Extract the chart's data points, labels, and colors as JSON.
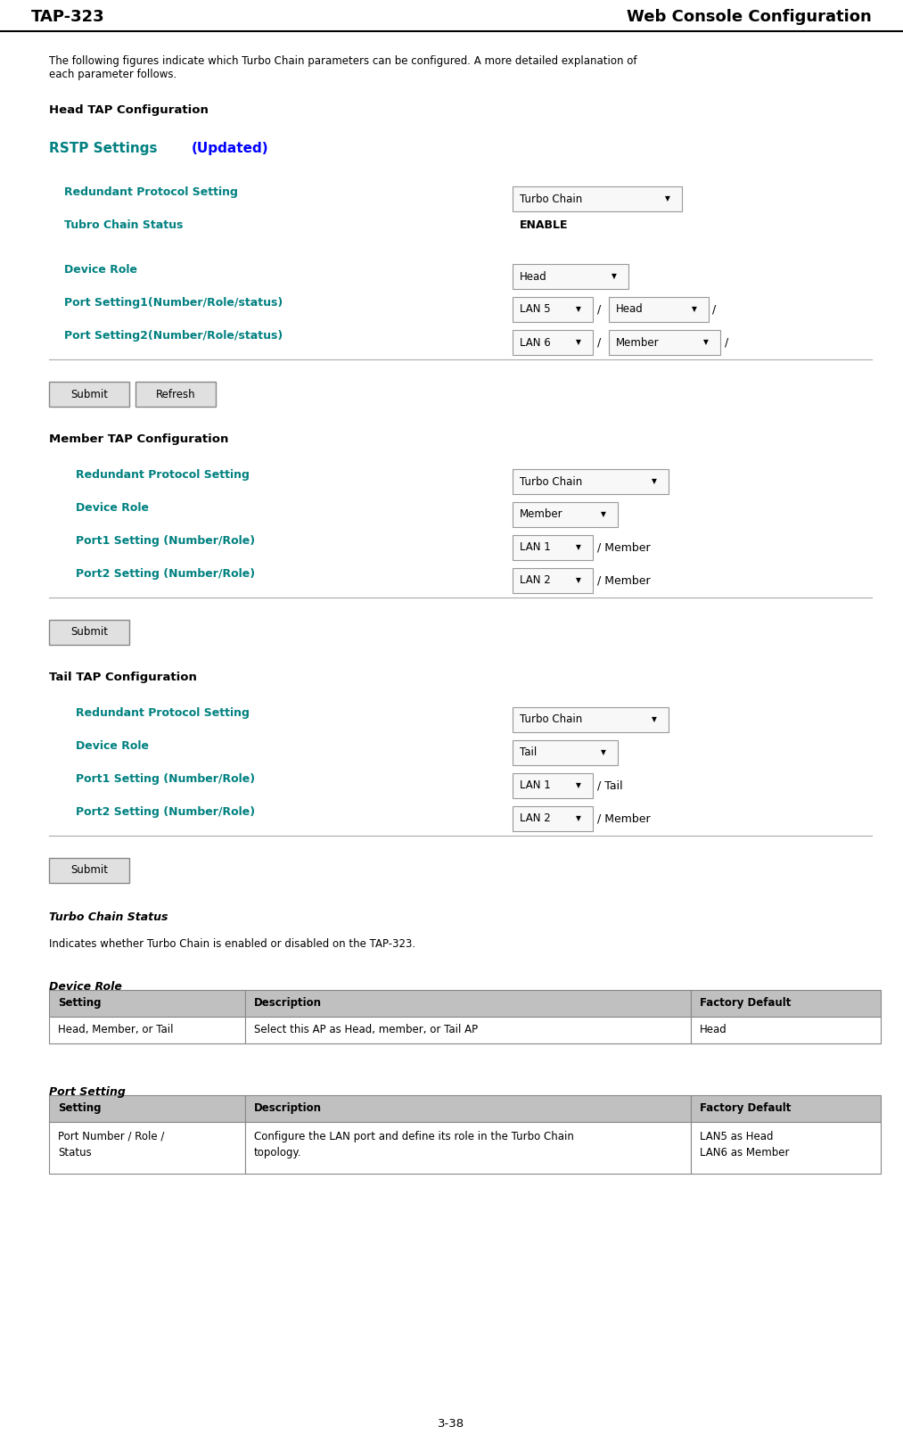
{
  "page_width": 10.13,
  "page_height": 16.18,
  "header_left": "TAP-323",
  "header_right": "Web Console Configuration",
  "header_fontsize": 13,
  "page_num": "3-38",
  "intro_text": "The following figures indicate which Turbo Chain parameters can be configured. A more detailed explanation of\neach parameter follows.",
  "section1_title": "Head TAP Configuration",
  "section2_title": "Member TAP Configuration",
  "section3_title": "Tail TAP Configuration",
  "rstp_label": "RSTP Settings ",
  "rstp_updated": "(Updated)",
  "teal_color": "#008080",
  "blue_color": "#0000FF",
  "black_color": "#000000",
  "box_border": "#888888",
  "table_header_bg": "#C0C0C0",
  "turbo_chain_status_title": "Turbo Chain Status",
  "turbo_chain_status_text": "Indicates whether Turbo Chain is enabled or disabled on the TAP-323.",
  "device_role_table": {
    "title": "Device Role",
    "headers": [
      "Setting",
      "Description",
      "Factory Default"
    ],
    "rows": [
      [
        "Head, Member, or Tail",
        "Select this AP as Head, member, or Tail AP",
        "Head"
      ]
    ]
  },
  "port_setting_table": {
    "title": "Port Setting",
    "headers": [
      "Setting",
      "Description",
      "Factory Default"
    ],
    "rows": [
      [
        "Port Number / Role /\nStatus",
        "Configure the LAN port and define its role in the Turbo Chain\ntopology.",
        "LAN5 as Head\nLAN6 as Member"
      ]
    ]
  }
}
